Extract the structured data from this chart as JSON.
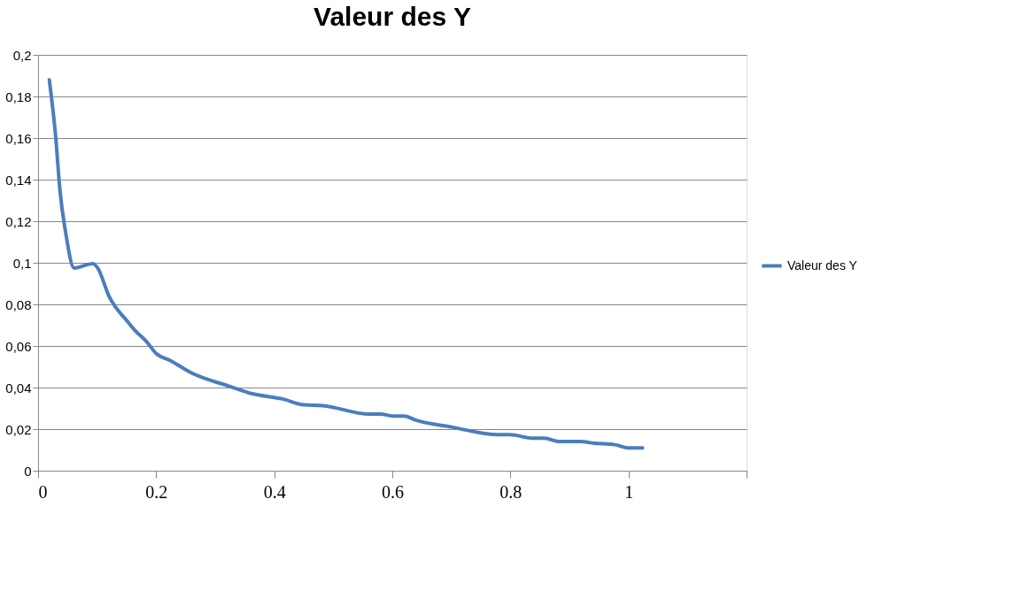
{
  "chart_data": {
    "type": "line",
    "title": "Valeur des Y",
    "x": [
      0.019,
      0.03,
      0.037,
      0.047,
      0.061,
      0.093,
      0.101,
      0.12,
      0.152,
      0.164,
      0.184,
      0.2,
      0.224,
      0.26,
      0.323,
      0.363,
      0.414,
      0.45,
      0.482,
      0.561,
      0.581,
      0.601,
      0.62,
      0.64,
      0.7,
      0.78,
      0.799,
      0.839,
      0.858,
      0.882,
      0.918,
      0.942,
      0.977,
      1.0,
      1.024
    ],
    "series": [
      {
        "name": "Valeur des Y",
        "color": "#4a7ebb",
        "values": [
          0.188,
          0.16,
          0.135,
          0.114,
          0.0975,
          0.0996,
          0.0975,
          0.084,
          0.0716,
          0.0675,
          0.062,
          0.0564,
          0.053,
          0.047,
          0.0407,
          0.037,
          0.0345,
          0.0317,
          0.0313,
          0.0272,
          0.0272,
          0.0263,
          0.0263,
          0.0243,
          0.021,
          0.0173,
          0.0173,
          0.0156,
          0.0156,
          0.014,
          0.014,
          0.0132,
          0.0125,
          0.011,
          0.011
        ]
      }
    ],
    "xlim": [
      0,
      1.2
    ],
    "xticks": [
      0,
      0.2,
      0.4,
      0.6,
      0.8,
      1,
      {
        "value": 1.2,
        "label": null
      }
    ],
    "ylim": [
      0,
      0.2
    ],
    "yticks": [
      0,
      {
        "value": 0.02,
        "label": "0,02"
      },
      {
        "value": 0.04,
        "label": "0,04"
      },
      {
        "value": 0.06,
        "label": "0,06"
      },
      {
        "value": 0.08,
        "label": "0,08"
      },
      {
        "value": 0.1,
        "label": "0,1"
      },
      {
        "value": 0.12,
        "label": "0,12"
      },
      {
        "value": 0.14,
        "label": "0,14"
      },
      {
        "value": 0.16,
        "label": "0,16"
      },
      {
        "value": 0.18,
        "label": "0,18"
      },
      {
        "value": 0.2,
        "label": "0,2"
      }
    ],
    "grid": "y",
    "legend": "right"
  }
}
